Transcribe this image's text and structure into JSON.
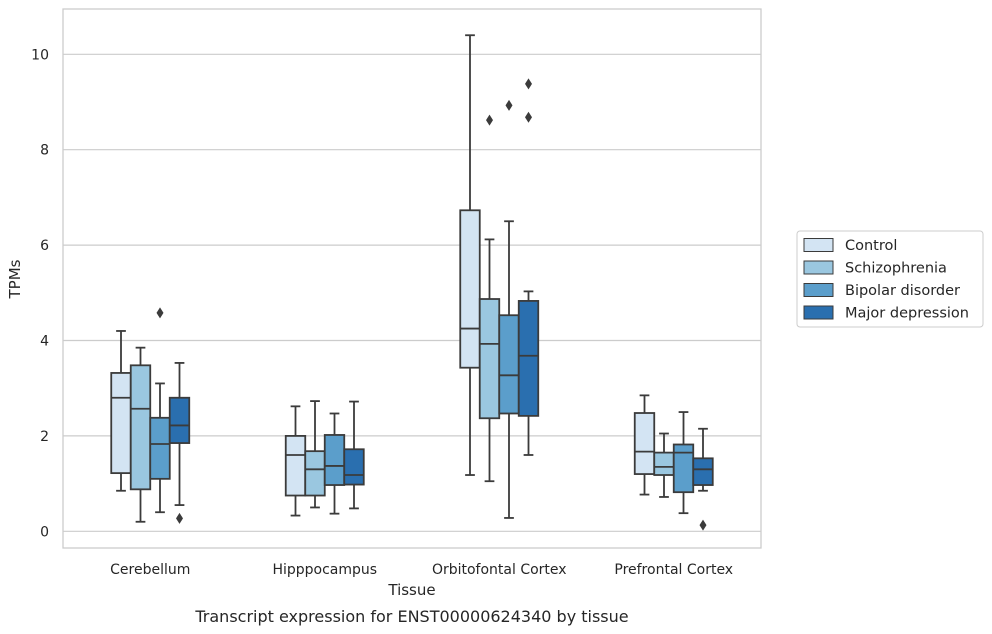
{
  "chart_data": {
    "type": "box",
    "title": "Transcript expression for ENST00000624340 by tissue",
    "xlabel": "Tissue",
    "ylabel": "TPMs",
    "ylim": [
      -0.35,
      10.95
    ],
    "yticks": [
      0,
      2,
      4,
      6,
      8,
      10
    ],
    "grid": "horizontal",
    "legend_position": "right",
    "categories": [
      "Cerebellum",
      "Hipppocampus",
      "Orbitofontal Cortex",
      "Prefrontal Cortex"
    ],
    "series": [
      {
        "name": "Control",
        "color": "#d3e4f3",
        "boxes": [
          {
            "whisker_low": 0.85,
            "q1": 1.22,
            "median": 2.8,
            "q3": 3.32,
            "whisker_high": 4.2,
            "outliers": []
          },
          {
            "whisker_low": 0.33,
            "q1": 0.75,
            "median": 1.6,
            "q3": 2.0,
            "whisker_high": 2.62,
            "outliers": []
          },
          {
            "whisker_low": 1.18,
            "q1": 3.43,
            "median": 4.25,
            "q3": 6.73,
            "whisker_high": 10.4,
            "outliers": []
          },
          {
            "whisker_low": 0.77,
            "q1": 1.2,
            "median": 1.67,
            "q3": 2.48,
            "whisker_high": 2.85,
            "outliers": []
          }
        ]
      },
      {
        "name": "Schizophrenia",
        "color": "#9ac7e0",
        "boxes": [
          {
            "whisker_low": 0.2,
            "q1": 0.88,
            "median": 2.57,
            "q3": 3.48,
            "whisker_high": 3.85,
            "outliers": []
          },
          {
            "whisker_low": 0.5,
            "q1": 0.75,
            "median": 1.3,
            "q3": 1.68,
            "whisker_high": 2.73,
            "outliers": []
          },
          {
            "whisker_low": 1.05,
            "q1": 2.37,
            "median": 3.93,
            "q3": 4.87,
            "whisker_high": 6.12,
            "outliers": [
              8.62
            ]
          },
          {
            "whisker_low": 0.72,
            "q1": 1.18,
            "median": 1.35,
            "q3": 1.65,
            "whisker_high": 2.05,
            "outliers": []
          }
        ]
      },
      {
        "name": "Bipolar disorder",
        "color": "#5b9ecb",
        "boxes": [
          {
            "whisker_low": 0.4,
            "q1": 1.1,
            "median": 1.83,
            "q3": 2.38,
            "whisker_high": 3.1,
            "outliers": [
              4.58
            ]
          },
          {
            "whisker_low": 0.37,
            "q1": 0.97,
            "median": 1.37,
            "q3": 2.02,
            "whisker_high": 2.47,
            "outliers": []
          },
          {
            "whisker_low": 0.28,
            "q1": 2.47,
            "median": 3.27,
            "q3": 4.53,
            "whisker_high": 6.5,
            "outliers": [
              8.93
            ]
          },
          {
            "whisker_low": 0.38,
            "q1": 0.82,
            "median": 1.65,
            "q3": 1.82,
            "whisker_high": 2.5,
            "outliers": []
          }
        ]
      },
      {
        "name": "Major depression",
        "color": "#2a6faf",
        "boxes": [
          {
            "whisker_low": 0.55,
            "q1": 1.85,
            "median": 2.22,
            "q3": 2.8,
            "whisker_high": 3.53,
            "outliers": [
              0.27
            ]
          },
          {
            "whisker_low": 0.48,
            "q1": 0.98,
            "median": 1.18,
            "q3": 1.72,
            "whisker_high": 2.72,
            "outliers": []
          },
          {
            "whisker_low": 1.6,
            "q1": 2.42,
            "median": 3.68,
            "q3": 4.83,
            "whisker_high": 5.03,
            "outliers": [
              9.38,
              8.68
            ]
          },
          {
            "whisker_low": 0.85,
            "q1": 0.97,
            "median": 1.3,
            "q3": 1.53,
            "whisker_high": 2.15,
            "outliers": [
              0.13
            ]
          }
        ]
      }
    ]
  }
}
